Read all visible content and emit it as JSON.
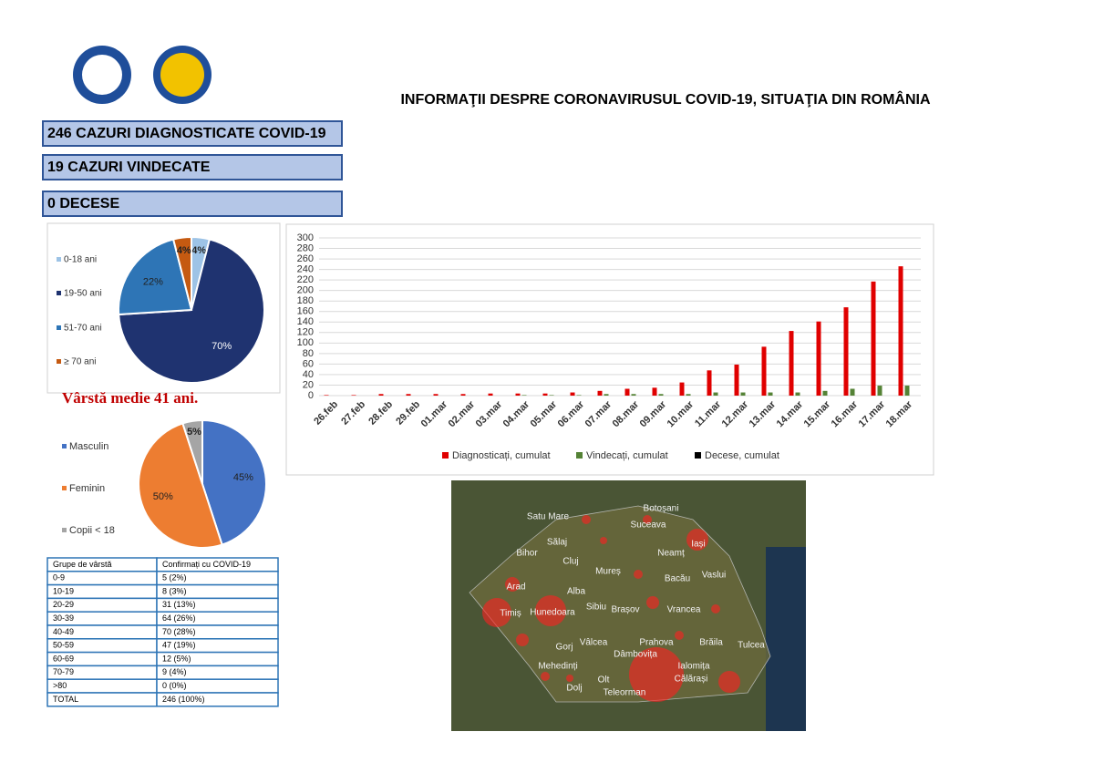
{
  "header": {
    "title": "INFORMAŢII DESPRE CORONAVIRUSUL COVID-19, SITUAŢIA DIN ROMÂNIA"
  },
  "boxes": [
    "246 CAZURI DIAGNOSTICATE COVID-19",
    "19 CAZURI VINDECATE",
    "0 DECESE"
  ],
  "chart_data": [
    {
      "type": "pie",
      "categories": [
        "0-18 ani",
        "19-50 ani",
        "51-70 ani",
        "≥ 70 ani"
      ],
      "values": [
        4,
        70,
        22,
        4
      ],
      "value_labels": [
        "4%",
        "70%",
        "22%",
        "4%"
      ],
      "colors": [
        "#9dc3e6",
        "#1f3370",
        "#2e75b6",
        "#c55a11"
      ],
      "subtitle": "Vârstă medie 41 ani."
    },
    {
      "type": "pie",
      "categories": [
        "Masculin",
        "Feminin",
        "Copii < 18"
      ],
      "values": [
        45,
        50,
        5
      ],
      "value_labels": [
        "45%",
        "50%",
        "5%"
      ],
      "colors": [
        "#4472c4",
        "#ed7d31",
        "#a5a5a5"
      ]
    },
    {
      "type": "bar",
      "categories": [
        "26.feb",
        "27.feb",
        "28.feb",
        "29.feb",
        "01.mar",
        "02.mar",
        "03.mar",
        "04.mar",
        "05.mar",
        "06.mar",
        "07.mar",
        "08.mar",
        "09.mar",
        "10.mar",
        "11.mar",
        "12.mar",
        "13.mar",
        "14.mar",
        "15.mar",
        "16.mar",
        "17.mar",
        "18.mar"
      ],
      "series": [
        {
          "name": "Diagnosticați, cumulat",
          "color": "#e00000",
          "values": [
            1,
            1,
            3,
            3,
            3,
            3,
            4,
            4,
            4,
            6,
            9,
            13,
            15,
            25,
            48,
            59,
            93,
            123,
            141,
            168,
            217,
            246
          ]
        },
        {
          "name": "Vindecați, cumulat",
          "color": "#548235",
          "values": [
            0,
            0,
            0,
            0,
            0,
            0,
            0,
            1,
            1,
            1,
            3,
            3,
            3,
            3,
            6,
            6,
            6,
            6,
            9,
            13,
            19,
            19
          ]
        },
        {
          "name": "Decese, cumulat",
          "color": "#000000",
          "values": [
            0,
            0,
            0,
            0,
            0,
            0,
            0,
            0,
            0,
            0,
            0,
            0,
            0,
            0,
            0,
            0,
            0,
            0,
            0,
            0,
            0,
            0
          ]
        }
      ],
      "ylim": [
        0,
        300
      ],
      "yticks": [
        0,
        20,
        40,
        60,
        80,
        100,
        120,
        140,
        160,
        180,
        200,
        220,
        240,
        260,
        280,
        300
      ],
      "grid": true
    }
  ],
  "table": {
    "header": [
      "Grupe de vârstă",
      "Confirmați cu COVID-19"
    ],
    "rows": [
      [
        "0-9",
        "5 (2%)"
      ],
      [
        "10-19",
        "8 (3%)"
      ],
      [
        "20-29",
        "31 (13%)"
      ],
      [
        "30-39",
        "64 (26%)"
      ],
      [
        "40-49",
        "70 (28%)"
      ],
      [
        "50-59",
        "47 (19%)"
      ],
      [
        "60-69",
        "12 (5%)"
      ],
      [
        "70-79",
        "9 (4%)"
      ],
      [
        ">80",
        "0 (0%)"
      ],
      [
        "TOTAL",
        "246 (100%)"
      ]
    ]
  },
  "map": {
    "labels": [
      "Satu Mare",
      "Botoșani",
      "Suceava",
      "Sălaj",
      "Iași",
      "Bihor",
      "Cluj",
      "Neamț",
      "Mureș",
      "Bacău",
      "Vaslui",
      "Arad",
      "Alba",
      "Sibiu",
      "Brașov",
      "Vrancea",
      "Timiș",
      "Hunedoara",
      "Prahova",
      "Brăila",
      "Tulcea",
      "Gorj",
      "Vâlcea",
      "Dâmbovița",
      "Ialomița",
      "Mehedinți",
      "Călărași",
      "Olt",
      "Dolj",
      "Teleorman"
    ]
  }
}
